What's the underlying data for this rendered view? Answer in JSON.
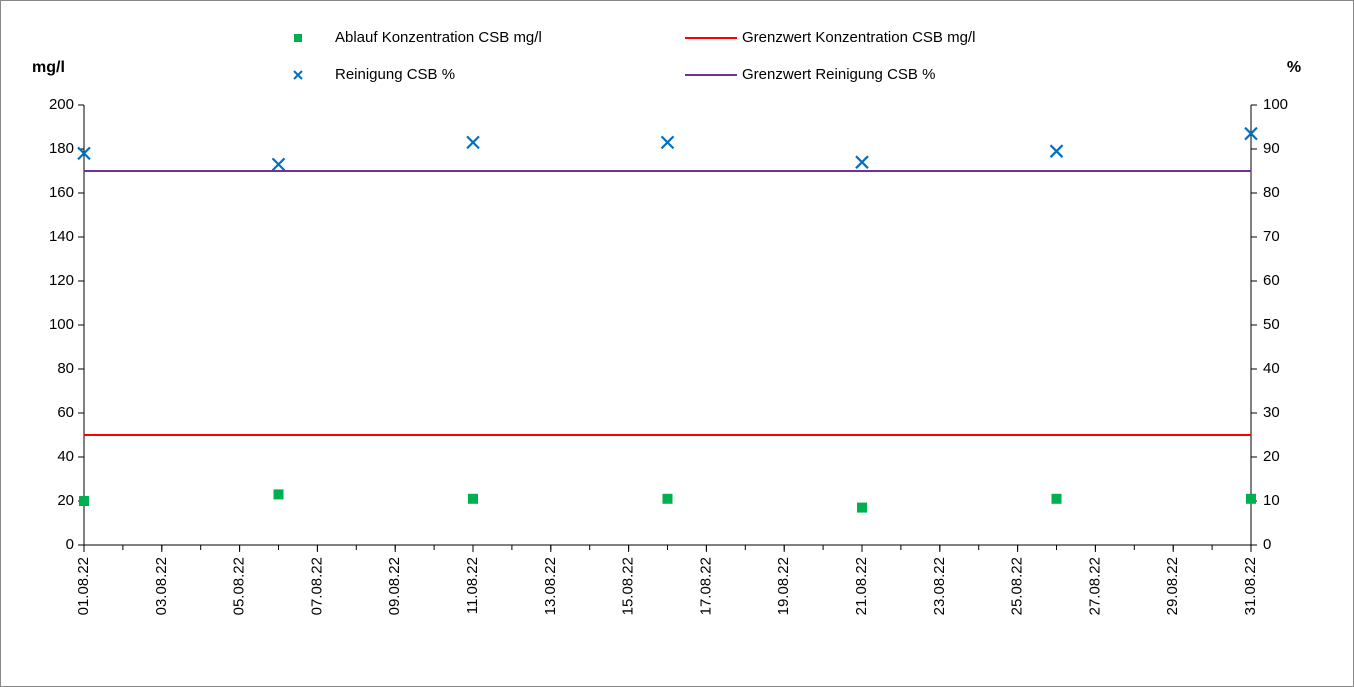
{
  "chart_data": {
    "type": "scatter",
    "ylabel": "mg/l",
    "y2label": "%",
    "x": [
      "01.08.22",
      "06.08.22",
      "11.08.22",
      "16.08.22",
      "21.08.22",
      "26.08.22",
      "31.08.22"
    ],
    "xlim": [
      "01.08.22",
      "31.08.22"
    ],
    "xticks": [
      "01.08.22",
      "03.08.22",
      "05.08.22",
      "07.08.22",
      "09.08.22",
      "11.08.22",
      "13.08.22",
      "15.08.22",
      "17.08.22",
      "19.08.22",
      "21.08.22",
      "23.08.22",
      "25.08.22",
      "27.08.22",
      "29.08.22",
      "31.08.22"
    ],
    "ylim": [
      0,
      200
    ],
    "yticks": [
      0,
      20,
      40,
      60,
      80,
      100,
      120,
      140,
      160,
      180,
      200
    ],
    "y2lim": [
      0,
      100
    ],
    "y2ticks": [
      0,
      10,
      20,
      30,
      40,
      50,
      60,
      70,
      80,
      90,
      100
    ],
    "grid": false,
    "series": [
      {
        "name": "Ablauf Konzentration CSB mg/l",
        "color": "#00b050",
        "marker": "square",
        "values": [
          20,
          23,
          21,
          21,
          17,
          21,
          21
        ]
      },
      {
        "name": "Grenzwert Konzentration CSB mg/l",
        "color": "#ff0000",
        "marker": "line",
        "values": [
          50,
          50,
          50,
          50,
          50,
          50,
          50
        ]
      },
      {
        "name": "Reinigung CSB %",
        "color": "#0070c0",
        "marker": "x",
        "axis": "y2",
        "values": [
          89,
          86.5,
          91.5,
          91.5,
          87,
          89.5,
          93.5
        ]
      },
      {
        "name": "Grenzwert Reinigung CSB %",
        "color": "#7030a0",
        "marker": "line",
        "axis": "y2",
        "values": [
          85,
          85,
          85,
          85,
          85,
          85,
          85
        ]
      }
    ]
  }
}
